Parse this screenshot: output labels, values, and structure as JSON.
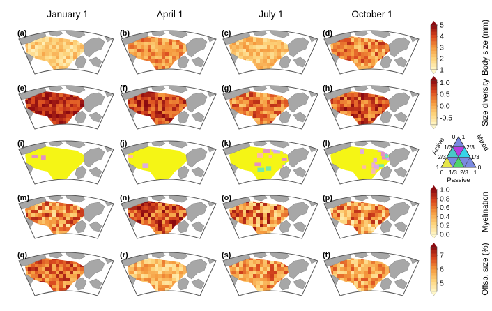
{
  "columns": [
    "January 1",
    "April 1",
    "July 1",
    "October 1"
  ],
  "chart_data": {
    "type": "heatmap",
    "title": "",
    "columns": [
      "January 1",
      "April 1",
      "July 1",
      "October 1"
    ],
    "rows": [
      {
        "variable": "Body size (mm)",
        "panels": [
          "(a)",
          "(b)",
          "(c)",
          "(d)"
        ],
        "colorbar": {
          "ticks": [
            "1",
            "2",
            "3",
            "4",
            "5"
          ],
          "range": [
            1,
            5
          ],
          "colors": [
            "#fff7c8",
            "#fdd27a",
            "#f59a3e",
            "#d9481e",
            "#8b0a10"
          ]
        },
        "map_level_mean": [
          2.0,
          3.0,
          2.3,
          3.2
        ],
        "map_level_spread": [
          0.5,
          0.6,
          0.5,
          0.8
        ]
      },
      {
        "variable": "Size diversity",
        "panels": [
          "(e)",
          "(f)",
          "(g)",
          "(h)"
        ],
        "colorbar": {
          "ticks": [
            "1.0",
            "0.5",
            "0.0",
            "-0.5"
          ],
          "range": [
            -0.8,
            1.1
          ],
          "colors": [
            "#fff7c8",
            "#fdd27a",
            "#f59a3e",
            "#d9481e",
            "#8b0a10"
          ]
        },
        "map_level_mean": [
          0.8,
          0.65,
          0.3,
          0.55
        ],
        "map_level_spread": [
          0.22,
          0.3,
          0.35,
          0.35
        ]
      },
      {
        "variable": "Active / Passive / Mixed",
        "panels": [
          "(i)",
          "(j)",
          "(k)",
          "(l)"
        ],
        "ternary": {
          "axes": [
            "Active",
            "Passive",
            "Mixed"
          ],
          "ticks": [
            "0",
            "1/3",
            "2/3",
            "1"
          ],
          "colors": {
            "top": "#b83ee0",
            "left": "#e6e64a",
            "right": "#36d3e8",
            "center": "#7a8ae0",
            "mid_left": "#4fd46a",
            "mid_right": "#48c8c8"
          }
        },
        "map_fill": "#f5f515",
        "patch_colors": [
          "#ffb0c0",
          "#e080e0",
          "#60e6c0",
          "#d8a0ff"
        ]
      },
      {
        "variable": "Myelination",
        "panels": [
          "(m)",
          "(n)",
          "(o)",
          "(p)"
        ],
        "colorbar": {
          "ticks": [
            "1.0",
            "0.8",
            "0.6",
            "0.4",
            "0.2",
            "0.0"
          ],
          "range": [
            0,
            1
          ],
          "colors": [
            "#fff7c8",
            "#fdd27a",
            "#f59a3e",
            "#d9481e",
            "#8b0a10"
          ]
        },
        "map_level_mean": [
          0.5,
          0.75,
          0.55,
          0.45
        ],
        "map_level_spread": [
          0.25,
          0.22,
          0.28,
          0.25
        ]
      },
      {
        "variable": "Offsp. size (%)",
        "panels": [
          "(q)",
          "(r)",
          "(s)",
          "(t)"
        ],
        "colorbar": {
          "ticks": [
            "7",
            "6",
            "5"
          ],
          "range": [
            4.4,
            7.6
          ],
          "colors": [
            "#fff7c8",
            "#fdd27a",
            "#f59a3e",
            "#d9481e",
            "#8b0a10"
          ]
        },
        "map_level_mean": [
          6.4,
          5.5,
          6.0,
          5.8
        ],
        "map_level_spread": [
          0.6,
          0.5,
          0.6,
          0.6
        ]
      }
    ]
  },
  "colors": {
    "land": "#a7a7a7",
    "land_dark": "#8c8c8c",
    "frame": "#555555"
  }
}
